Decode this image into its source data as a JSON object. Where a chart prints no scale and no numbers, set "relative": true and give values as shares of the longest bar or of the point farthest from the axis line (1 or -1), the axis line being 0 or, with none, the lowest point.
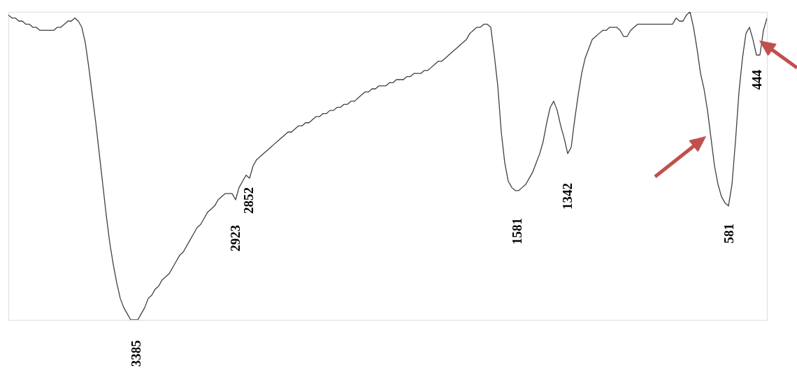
{
  "chart_data": {
    "type": "line",
    "relative": true,
    "tick_labels": false,
    "marker": "none",
    "line_style": "solid",
    "categories": [
      null,
      null,
      null,
      null,
      null,
      null,
      null,
      null,
      null,
      null,
      null,
      null,
      null,
      null,
      null,
      null,
      null,
      null,
      null,
      null,
      null,
      null,
      null,
      null,
      null,
      null,
      null,
      null,
      null,
      null,
      null,
      null,
      null,
      null,
      null,
      null,
      null,
      null,
      null,
      null,
      null,
      null,
      null,
      null,
      null,
      null,
      null,
      null,
      null,
      null,
      null,
      null,
      null,
      null,
      null,
      null,
      null,
      null,
      null,
      null,
      null,
      null,
      null,
      null,
      null,
      null,
      null,
      null,
      null,
      null,
      null,
      null,
      null,
      null,
      null,
      null,
      null,
      null,
      null,
      null,
      null,
      null,
      null,
      null,
      null,
      null,
      null,
      null,
      null,
      null,
      null,
      null,
      null,
      null,
      null,
      null,
      null,
      null,
      null,
      null,
      null,
      null,
      null,
      null,
      null,
      null,
      null,
      null,
      null,
      null,
      null,
      null,
      null,
      null,
      null,
      null,
      null,
      null,
      null,
      null,
      null,
      null,
      null,
      null,
      null,
      null,
      null,
      null,
      null,
      null,
      null,
      null,
      null,
      null,
      null,
      null,
      null,
      null,
      null,
      null,
      null,
      null,
      null,
      null,
      null,
      null,
      null,
      null,
      null,
      null,
      null,
      null,
      null,
      null,
      null,
      null,
      null,
      null,
      null,
      null,
      null,
      null,
      null,
      null,
      null,
      null,
      null,
      null,
      null,
      null,
      null,
      null,
      null,
      null,
      null,
      null,
      null,
      null,
      null,
      null,
      null,
      null,
      null,
      null,
      null,
      null,
      null,
      null,
      null,
      null,
      null,
      null,
      null,
      null,
      null,
      null,
      null,
      null,
      null,
      null,
      null,
      null,
      null,
      null,
      null,
      null,
      null,
      null,
      null,
      null,
      null,
      null,
      null,
      null,
      null,
      null,
      null,
      null
    ],
    "series": [
      {
        "color": "#404040",
        "values": [
          0.99,
          0.98,
          0.98,
          0.97,
          0.97,
          0.96,
          0.96,
          0.95,
          0.95,
          0.94,
          0.94,
          0.94,
          0.94,
          0.94,
          0.95,
          0.95,
          0.96,
          0.97,
          0.97,
          0.98,
          0.97,
          0.95,
          0.9,
          0.82,
          0.73,
          0.64,
          0.54,
          0.44,
          0.34,
          0.25,
          0.18,
          0.12,
          0.07,
          0.04,
          0.02,
          0.0,
          0.0,
          0.0,
          0.02,
          0.04,
          0.07,
          0.08,
          0.1,
          0.11,
          0.13,
          0.14,
          0.15,
          0.17,
          0.19,
          0.21,
          0.22,
          0.24,
          0.26,
          0.28,
          0.3,
          0.31,
          0.33,
          0.35,
          0.36,
          0.37,
          0.39,
          0.4,
          0.41,
          0.41,
          0.41,
          0.39,
          0.43,
          0.45,
          0.47,
          0.46,
          0.5,
          0.52,
          0.53,
          0.54,
          0.55,
          0.56,
          0.57,
          0.58,
          0.59,
          0.6,
          0.61,
          0.61,
          0.62,
          0.63,
          0.63,
          0.64,
          0.64,
          0.65,
          0.66,
          0.66,
          0.67,
          0.67,
          0.68,
          0.68,
          0.69,
          0.69,
          0.7,
          0.7,
          0.71,
          0.71,
          0.72,
          0.73,
          0.74,
          0.74,
          0.75,
          0.75,
          0.76,
          0.76,
          0.76,
          0.77,
          0.77,
          0.78,
          0.78,
          0.78,
          0.79,
          0.79,
          0.8,
          0.8,
          0.8,
          0.81,
          0.81,
          0.82,
          0.83,
          0.84,
          0.84,
          0.85,
          0.86,
          0.87,
          0.88,
          0.89,
          0.9,
          0.91,
          0.93,
          0.94,
          0.95,
          0.95,
          0.96,
          0.96,
          0.95,
          0.86,
          0.76,
          0.61,
          0.51,
          0.45,
          0.43,
          0.42,
          0.42,
          0.43,
          0.44,
          0.46,
          0.48,
          0.51,
          0.54,
          0.58,
          0.64,
          0.69,
          0.71,
          0.68,
          0.63,
          0.59,
          0.54,
          0.56,
          0.65,
          0.73,
          0.8,
          0.85,
          0.88,
          0.91,
          0.92,
          0.93,
          0.94,
          0.94,
          0.95,
          0.95,
          0.95,
          0.94,
          0.92,
          0.92,
          0.94,
          0.95,
          0.96,
          0.96,
          0.96,
          0.96,
          0.96,
          0.96,
          0.96,
          0.96,
          0.96,
          0.96,
          0.96,
          0.98,
          0.97,
          0.97,
          0.99,
          1.0,
          0.95,
          0.88,
          0.8,
          0.75,
          0.68,
          0.59,
          0.5,
          0.44,
          0.4,
          0.38,
          0.37,
          0.44,
          0.58,
          0.74,
          0.85,
          0.93,
          0.95,
          0.91,
          0.86,
          0.86,
          0.94,
          0.98
        ]
      }
    ],
    "annotations": [
      "3385",
      "2923",
      "2852",
      "1581",
      "1342",
      "581",
      "444"
    ]
  }
}
